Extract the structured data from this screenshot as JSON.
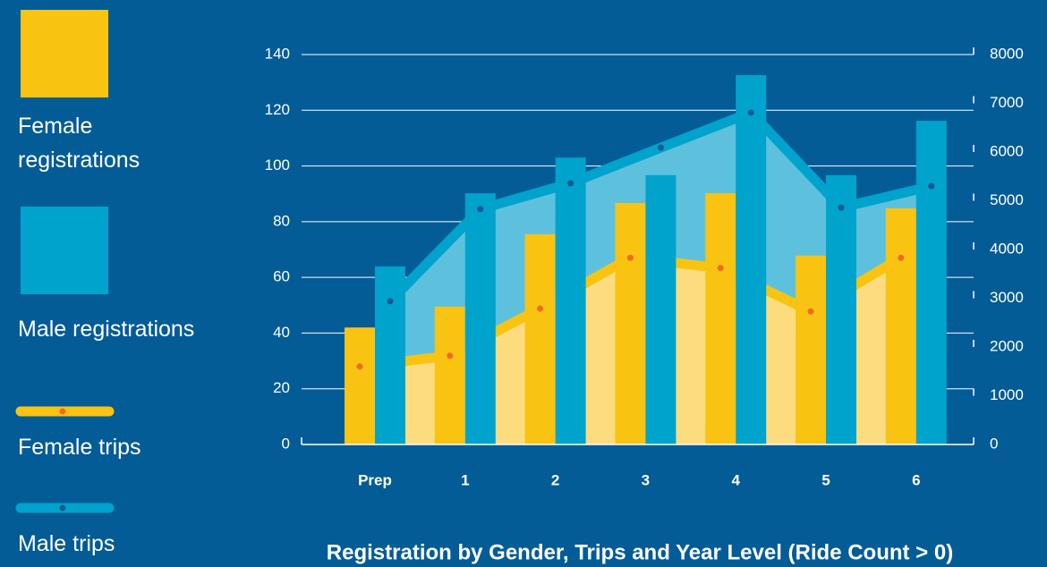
{
  "chart_data": {
    "type": "bar",
    "title": "Registration by Gender, Trips and Year Level (Ride Count > 0)",
    "categories": [
      "Prep",
      "1",
      "2",
      "3",
      "4",
      "5",
      "6"
    ],
    "ylim": [
      0,
      140
    ],
    "yticks": [
      0,
      20,
      40,
      60,
      80,
      100,
      120,
      140
    ],
    "y2lim": [
      0,
      8000
    ],
    "y2ticks": [
      0,
      1000,
      2000,
      3000,
      4000,
      5000,
      6000,
      7000,
      8000
    ],
    "grid": true,
    "legend": "left",
    "series": [
      {
        "name": "Female registrations",
        "type": "bar",
        "color": "#f9c312",
        "values": [
          42,
          49.5,
          75.5,
          86.7,
          90.2,
          67.8,
          84.8
        ]
      },
      {
        "name": "Male registrations",
        "type": "bar",
        "color": "#00a3cc",
        "values": [
          63.9,
          90.2,
          103,
          96.7,
          132.6,
          96.7,
          116.2
        ]
      },
      {
        "name": "Female trips",
        "type": "line",
        "axis": "y2",
        "color": "#f9c312",
        "values": [
          1600,
          1820,
          2790,
          3830,
          3620,
          2730,
          3830
        ]
      },
      {
        "name": "Male trips",
        "type": "line",
        "axis": "y2",
        "color": "#00a3cc",
        "values": [
          2940,
          4830,
          5360,
          6090,
          6810,
          4860,
          5300
        ]
      }
    ]
  }
}
